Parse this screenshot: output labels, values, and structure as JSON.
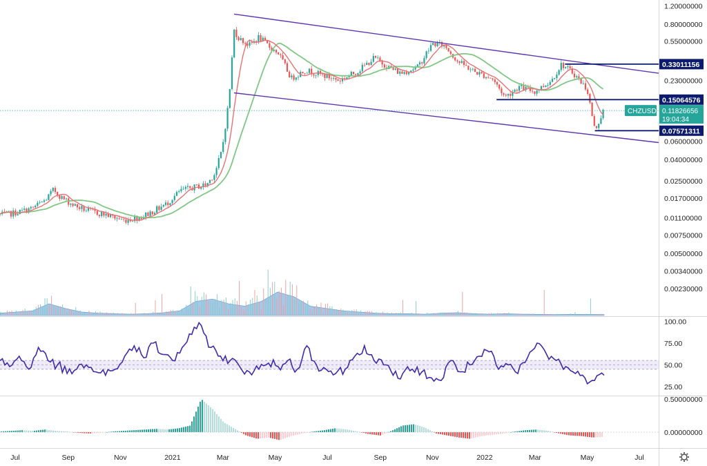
{
  "chart_data": {
    "type": "candlestick",
    "symbol": "CHZUSD",
    "scale": "log",
    "grid": false,
    "x_labels": [
      "Jul",
      "Sep",
      "Nov",
      "2021",
      "Mar",
      "May",
      "Jul",
      "Sep",
      "Nov",
      "2022",
      "Mar",
      "May",
      "Jul"
    ],
    "price_axis_labels": [
      "1.20000000",
      "0.80000000",
      "0.55000000",
      "0.23000000",
      "0.06000000",
      "0.04000000",
      "0.02500000",
      "0.01700000",
      "0.01100000",
      "0.00750000",
      "0.00500000",
      "0.00340000",
      "0.00230000"
    ],
    "price_tags": [
      {
        "label": "0.33011156",
        "value": 0.33011156
      },
      {
        "label": "0.15064576",
        "value": 0.15064576
      },
      {
        "label": "0.07571311",
        "value": 0.07571311
      }
    ],
    "current_price": {
      "symbol": "CHZUSD",
      "label": "0.11826656",
      "value": 0.11826656,
      "countdown": "19:04:34"
    },
    "price_path": [
      [
        "2020-06-20",
        0.0118
      ],
      [
        "2020-07-05",
        0.0125
      ],
      [
        "2020-07-20",
        0.0135
      ],
      [
        "2020-08-05",
        0.0162
      ],
      [
        "2020-08-15",
        0.0205
      ],
      [
        "2020-08-25",
        0.017
      ],
      [
        "2020-09-10",
        0.0142
      ],
      [
        "2020-09-25",
        0.0128
      ],
      [
        "2020-10-15",
        0.0118
      ],
      [
        "2020-11-05",
        0.0104
      ],
      [
        "2020-11-25",
        0.0112
      ],
      [
        "2020-12-10",
        0.0128
      ],
      [
        "2020-12-25",
        0.015
      ],
      [
        "2021-01-10",
        0.02
      ],
      [
        "2021-01-25",
        0.0215
      ],
      [
        "2021-02-10",
        0.023
      ],
      [
        "2021-02-20",
        0.03
      ],
      [
        "2021-02-28",
        0.05
      ],
      [
        "2021-03-08",
        0.15
      ],
      [
        "2021-03-14",
        0.7
      ],
      [
        "2021-03-20",
        0.58
      ],
      [
        "2021-04-01",
        0.5
      ],
      [
        "2021-04-12",
        0.6
      ],
      [
        "2021-04-25",
        0.48
      ],
      [
        "2021-05-05",
        0.42
      ],
      [
        "2021-05-20",
        0.24
      ],
      [
        "2021-06-05",
        0.29
      ],
      [
        "2021-06-25",
        0.26
      ],
      [
        "2021-07-15",
        0.23
      ],
      [
        "2021-08-05",
        0.28
      ],
      [
        "2021-08-25",
        0.38
      ],
      [
        "2021-09-10",
        0.31
      ],
      [
        "2021-09-25",
        0.27
      ],
      [
        "2021-10-15",
        0.31
      ],
      [
        "2021-11-01",
        0.52
      ],
      [
        "2021-11-15",
        0.5
      ],
      [
        "2021-12-01",
        0.35
      ],
      [
        "2021-12-20",
        0.28
      ],
      [
        "2022-01-10",
        0.24
      ],
      [
        "2022-01-25",
        0.16
      ],
      [
        "2022-02-10",
        0.2
      ],
      [
        "2022-03-01",
        0.18
      ],
      [
        "2022-03-20",
        0.23
      ],
      [
        "2022-04-01",
        0.33
      ],
      [
        "2022-04-15",
        0.27
      ],
      [
        "2022-05-01",
        0.19
      ],
      [
        "2022-05-10",
        0.0757
      ],
      [
        "2022-05-20",
        0.118
      ]
    ],
    "channel_lines": [
      {
        "from": [
          "2021-03-14",
          1.0
        ],
        "to": [
          "2022-07-10",
          0.28
        ]
      },
      {
        "from": [
          "2021-03-14",
          0.175
        ],
        "to": [
          "2022-07-10",
          0.06
        ]
      }
    ],
    "volume": [
      0.1,
      0.15,
      0.2,
      0.5,
      0.3,
      0.15,
      0.1,
      0.08,
      0.06,
      0.08,
      0.12,
      0.2,
      0.6,
      0.7,
      0.5,
      0.4,
      0.6,
      1.0,
      0.8,
      0.4,
      0.3,
      0.2,
      0.15,
      0.1,
      0.08,
      0.08,
      0.06,
      0.1,
      0.12,
      0.08,
      0.06,
      0.08,
      0.06,
      0.05,
      0.04,
      0.05,
      0.05,
      0.04
    ],
    "rsi": {
      "axis_labels": [
        "100.00",
        "75.00",
        "50.00",
        "25.00"
      ],
      "band": [
        45,
        55
      ],
      "values": [
        55,
        48,
        60,
        45,
        70,
        55,
        50,
        40,
        45,
        50,
        42,
        38,
        45,
        60,
        72,
        58,
        75,
        62,
        55,
        70,
        85,
        95,
        70,
        60,
        55,
        48,
        42,
        45,
        52,
        48,
        55,
        45,
        72,
        50,
        45,
        40,
        45,
        60,
        72,
        55,
        50,
        38,
        40,
        45,
        42,
        35,
        32,
        55,
        42,
        50,
        60,
        65,
        45,
        50,
        40,
        58,
        75,
        62,
        55,
        48,
        40,
        35,
        32,
        38
      ]
    },
    "macd_hist": {
      "axis_labels": [
        "0.50000000",
        "0.00000000"
      ],
      "values": [
        0.01,
        0.02,
        0.03,
        0.02,
        0.04,
        0.02,
        0.01,
        -0.01,
        -0.02,
        -0.01,
        0.01,
        0.02,
        0.03,
        0.04,
        0.05,
        0.04,
        0.06,
        0.1,
        0.5,
        0.35,
        0.15,
        0.05,
        -0.05,
        -0.1,
        -0.08,
        -0.12,
        -0.06,
        -0.02,
        0.01,
        0.03,
        0.06,
        0.04,
        0.01,
        -0.03,
        -0.05,
        0.02,
        0.1,
        0.12,
        0.07,
        -0.02,
        -0.05,
        -0.08,
        -0.1,
        -0.06,
        -0.04,
        -0.02,
        0.01,
        0.03,
        0.04,
        0.02,
        -0.02,
        -0.05,
        -0.06,
        -0.08,
        -0.07
      ]
    }
  }
}
